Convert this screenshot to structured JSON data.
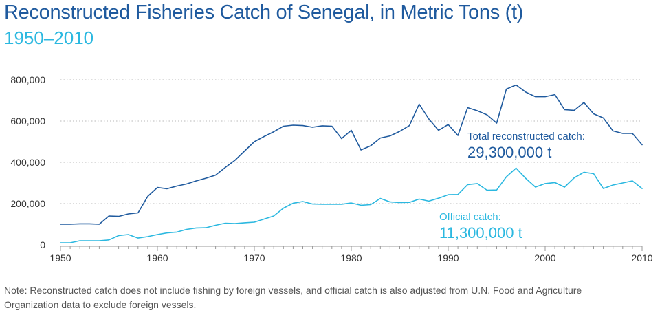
{
  "chart_data": {
    "type": "line",
    "title": "Reconstructed Fisheries Catch of Senegal, in Metric Tons (t)",
    "subtitle": "1950–2010",
    "xlabel": "",
    "ylabel": "",
    "xlim": [
      1950,
      2010
    ],
    "ylim": [
      0,
      800000
    ],
    "x_ticks": [
      1950,
      1960,
      1970,
      1980,
      1990,
      2000,
      2010
    ],
    "y_ticks": [
      0,
      200000,
      400000,
      600000,
      800000
    ],
    "y_tick_labels": [
      "0",
      "200,000",
      "400,000",
      "600,000",
      "800,000"
    ],
    "grid": "horizontal dotted",
    "x": [
      1950,
      1951,
      1952,
      1953,
      1954,
      1955,
      1956,
      1957,
      1958,
      1959,
      1960,
      1961,
      1962,
      1963,
      1964,
      1965,
      1966,
      1967,
      1968,
      1969,
      1970,
      1971,
      1972,
      1973,
      1974,
      1975,
      1976,
      1977,
      1978,
      1979,
      1980,
      1981,
      1982,
      1983,
      1984,
      1985,
      1986,
      1987,
      1988,
      1989,
      1990,
      1991,
      1992,
      1993,
      1994,
      1995,
      1996,
      1997,
      1998,
      1999,
      2000,
      2001,
      2002,
      2003,
      2004,
      2005,
      2006,
      2007,
      2008,
      2009,
      2010
    ],
    "series": [
      {
        "values": [
          100000,
          100000,
          102000,
          102000,
          100000,
          140000,
          138000,
          150000,
          155000,
          235000,
          278000,
          272000,
          285000,
          295000,
          310000,
          323000,
          338000,
          375000,
          410000,
          455000,
          500000,
          525000,
          548000,
          575000,
          580000,
          578000,
          570000,
          577000,
          575000,
          515000,
          555000,
          460000,
          480000,
          518000,
          528000,
          550000,
          578000,
          682000,
          610000,
          555000,
          583000,
          530000,
          665000,
          650000,
          630000,
          590000,
          755000,
          775000,
          740000,
          718000,
          718000,
          728000,
          655000,
          652000,
          690000,
          635000,
          615000,
          552000,
          540000,
          540000,
          485000
        ],
        "color": "#1f5a9e"
      },
      {
        "values": [
          10000,
          10000,
          20000,
          20000,
          20000,
          24000,
          45000,
          50000,
          33000,
          40000,
          50000,
          58000,
          62000,
          75000,
          82000,
          83000,
          95000,
          105000,
          103000,
          107000,
          110000,
          125000,
          140000,
          178000,
          202000,
          210000,
          198000,
          197000,
          197000,
          197000,
          203000,
          192000,
          195000,
          225000,
          208000,
          205000,
          206000,
          222000,
          212000,
          226000,
          243000,
          244000,
          292000,
          297000,
          265000,
          266000,
          330000,
          372000,
          322000,
          280000,
          297000,
          302000,
          280000,
          325000,
          352000,
          345000,
          273000,
          290000,
          300000,
          310000,
          273000
        ],
        "color": "#2bb8e0"
      }
    ],
    "annotations": [
      {
        "label": "Total reconstructed catch:",
        "value": "29,300,000 t",
        "color": "#1f5a9e"
      },
      {
        "label": "Official catch:",
        "value": "11,300,000 t",
        "color": "#2bb8e0"
      }
    ]
  },
  "note": "Note: Reconstructed catch does not include fishing by foreign vessels, and official catch is also adjusted from U.N. Food and Agriculture Organization data to exclude foreign vessels."
}
